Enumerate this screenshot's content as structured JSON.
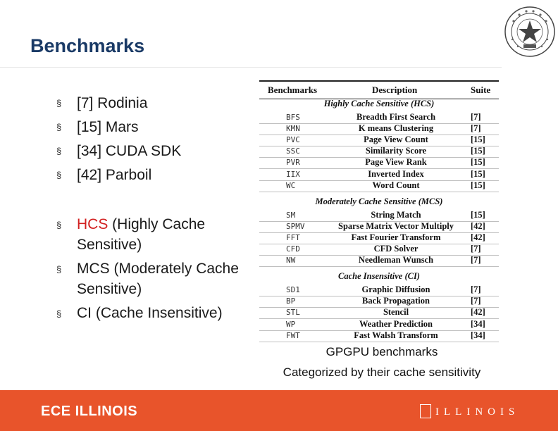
{
  "title": "Benchmarks",
  "suite_list": [
    "[7] Rodinia",
    "[15] Mars",
    "[34] CUDA SDK",
    "[42] Parboil"
  ],
  "categories_list": [
    {
      "abbr": "HCS",
      "rest": " (Highly  Cache Sensitive)"
    },
    {
      "abbr": "MCS",
      "rest": " (Moderately Cache  Sensitive)"
    },
    {
      "abbr": "CI",
      "rest": " (Cache Insensitive)"
    }
  ],
  "table": {
    "headers": {
      "benchmarks": "Benchmarks",
      "description": "Description",
      "suite": "Suite"
    },
    "groups": [
      {
        "name": "Highly Cache Sensitive (HCS)",
        "rows": [
          [
            "BFS",
            "Breadth First Search",
            "[7]"
          ],
          [
            "KMN",
            "K means Clustering",
            "[7]"
          ],
          [
            "PVC",
            "Page View Count",
            "[15]"
          ],
          [
            "SSC",
            "Similarity Score",
            "[15]"
          ],
          [
            "PVR",
            "Page View Rank",
            "[15]"
          ],
          [
            "IIX",
            "Inverted Index",
            "[15]"
          ],
          [
            "WC",
            "Word Count",
            "[15]"
          ]
        ]
      },
      {
        "name": "Moderately Cache Sensitive (MCS)",
        "rows": [
          [
            "SM",
            "String Match",
            "[15]"
          ],
          [
            "SPMV",
            "Sparse Matrix Vector Multiply",
            "[42]"
          ],
          [
            "FFT",
            "Fast Fourier Transform",
            "[42]"
          ],
          [
            "CFD",
            "CFD Solver",
            "[7]"
          ],
          [
            "NW",
            "Needleman Wunsch",
            "[7]"
          ]
        ]
      },
      {
        "name": "Cache Insensitive (CI)",
        "rows": [
          [
            "SD1",
            "Graphic Diffusion",
            "[7]"
          ],
          [
            "BP",
            "Back Propagation",
            "[7]"
          ],
          [
            "STL",
            "Stencil",
            "[42]"
          ],
          [
            "WP",
            "Weather Prediction",
            "[34]"
          ],
          [
            "FWT",
            "Fast Walsh Transform",
            "[34]"
          ]
        ]
      }
    ]
  },
  "caption": {
    "line1": "GPGPU benchmarks",
    "line2": "Categorized by their cache sensitivity"
  },
  "footer": {
    "left": "ECE ILLINOIS",
    "right": "ILLINOIS"
  },
  "colors": {
    "title": "#1a3a66",
    "highlight": "#d22020",
    "footer": "#e8542b"
  },
  "bullet_marker": "§",
  "seal_icon": "university-seal-icon"
}
